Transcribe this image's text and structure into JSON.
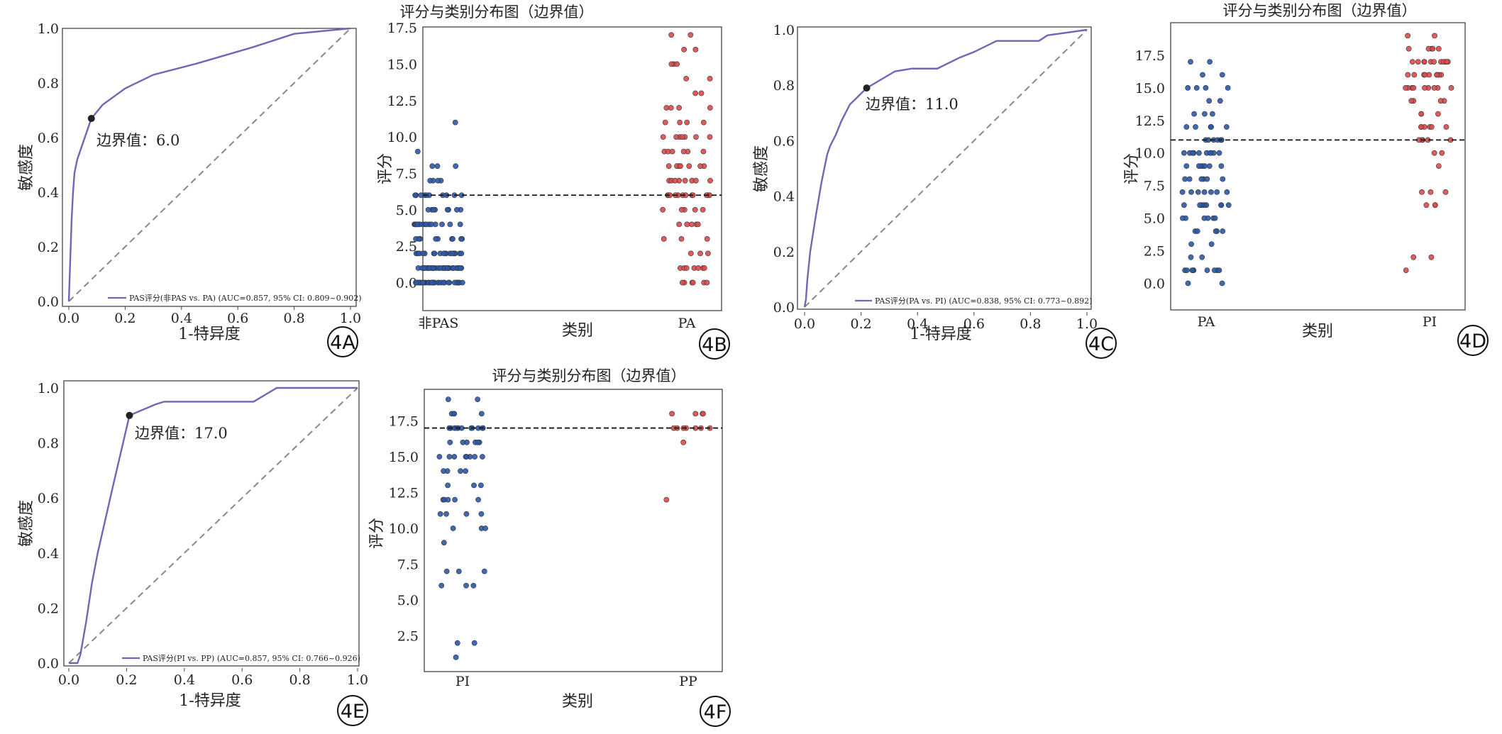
{
  "colors": {
    "roc_line": "#6f67b6",
    "diagonal": "#888888",
    "cutoff_dot": "#222222",
    "group_a": "#2b59a8",
    "group_b": "#d94b4b",
    "threshold": "#111111"
  },
  "chart_data": [
    {
      "id": "4A",
      "type": "line",
      "panel_label": "4A",
      "title": "",
      "xlabel": "1-特异度",
      "ylabel": "敏感度",
      "xlim": [
        0,
        1
      ],
      "ylim": [
        0,
        1
      ],
      "xticks": [
        "0.0",
        "0.2",
        "0.4",
        "0.6",
        "0.8",
        "1.0"
      ],
      "yticks": [
        "0.0",
        "0.2",
        "0.4",
        "0.6",
        "0.8",
        "1.0"
      ],
      "x": [
        0,
        0.005,
        0.01,
        0.015,
        0.02,
        0.03,
        0.05,
        0.08,
        0.12,
        0.2,
        0.3,
        0.45,
        0.65,
        0.8,
        1.0
      ],
      "y": [
        0,
        0.15,
        0.3,
        0.4,
        0.47,
        0.52,
        0.58,
        0.67,
        0.72,
        0.78,
        0.83,
        0.87,
        0.93,
        0.98,
        1.0
      ],
      "cutoff": {
        "x": 0.08,
        "y": 0.67,
        "text": "边界值：6.0"
      },
      "legend": "PAS评分(非PAS vs. PA) (AUC=0.857, 95% CI: 0.809~0.902)"
    },
    {
      "id": "4B",
      "type": "scatter",
      "panel_label": "4B",
      "title": "评分与类别分布图（边界值）",
      "xlabel": "类别",
      "ylabel": "评分",
      "ylim": [
        -0.9,
        17.6
      ],
      "yticks": [
        "0.0",
        "2.5",
        "5.0",
        "7.5",
        "10.0",
        "12.5",
        "15.0",
        "17.5"
      ],
      "categories": [
        "非PAS",
        "PA"
      ],
      "threshold": 6.0,
      "series": [
        {
          "name": "非PAS",
          "values": [
            0,
            0,
            0,
            0,
            0,
            0,
            0,
            0,
            0,
            0,
            0,
            0,
            0,
            0,
            0,
            0,
            0,
            0,
            0,
            0,
            0,
            0,
            0,
            0,
            0,
            0,
            0,
            0,
            0,
            0,
            0,
            0,
            0,
            0,
            0,
            0,
            1,
            1,
            1,
            1,
            1,
            1,
            1,
            1,
            1,
            1,
            1,
            1,
            1,
            1,
            1,
            1,
            1,
            1,
            1,
            1,
            1,
            1,
            1,
            1,
            1,
            1,
            1,
            1,
            1,
            1,
            1,
            1,
            1,
            1,
            1,
            1,
            2,
            2,
            2,
            2,
            2,
            2,
            2,
            2,
            2,
            2,
            2,
            2,
            2,
            2,
            2,
            2,
            2,
            2,
            3,
            3,
            3,
            3,
            3,
            3,
            3,
            3,
            3,
            4,
            4,
            4,
            4,
            4,
            4,
            4,
            4,
            4,
            4,
            4,
            4,
            4,
            4,
            4,
            5,
            5,
            5,
            5,
            5,
            5,
            5,
            5,
            6,
            6,
            6,
            6,
            6,
            6,
            6,
            6,
            6,
            6,
            6,
            7,
            7,
            7,
            7,
            8,
            8,
            8,
            9,
            11
          ]
        },
        {
          "name": "PA",
          "values": [
            0,
            0,
            0,
            0,
            0,
            0,
            1,
            1,
            1,
            1,
            1,
            1,
            1,
            2,
            2,
            2,
            3,
            3,
            3,
            4,
            4,
            4,
            4,
            4,
            5,
            5,
            5,
            5,
            5,
            6,
            6,
            6,
            6,
            6,
            6,
            6,
            6,
            6,
            6,
            6,
            6,
            7,
            7,
            7,
            7,
            7,
            7,
            7,
            7,
            8,
            8,
            8,
            8,
            8,
            8,
            8,
            9,
            9,
            9,
            9,
            9,
            9,
            10,
            10,
            10,
            10,
            10,
            10,
            10,
            11,
            11,
            11,
            11,
            12,
            12,
            12,
            12,
            13,
            13,
            14,
            14,
            15,
            15,
            15,
            16,
            16,
            17,
            17
          ]
        }
      ]
    },
    {
      "id": "4C",
      "type": "line",
      "panel_label": "4C",
      "title": "",
      "xlabel": "1-特异度",
      "ylabel": "敏感度",
      "xlim": [
        0,
        1
      ],
      "ylim": [
        0,
        1
      ],
      "xticks": [
        "0.0",
        "0.2",
        "0.4",
        "0.6",
        "0.8",
        "1.0"
      ],
      "yticks": [
        "0.0",
        "0.2",
        "0.4",
        "0.6",
        "0.8",
        "1.0"
      ],
      "x": [
        0,
        0.005,
        0.01,
        0.02,
        0.04,
        0.06,
        0.08,
        0.09,
        0.11,
        0.13,
        0.16,
        0.19,
        0.22,
        0.27,
        0.32,
        0.38,
        0.47,
        0.55,
        0.6,
        0.68,
        0.83,
        0.86,
        1.0
      ],
      "y": [
        0,
        0.03,
        0.1,
        0.2,
        0.33,
        0.45,
        0.55,
        0.58,
        0.62,
        0.67,
        0.73,
        0.76,
        0.79,
        0.82,
        0.85,
        0.86,
        0.86,
        0.9,
        0.92,
        0.96,
        0.96,
        0.98,
        1.0
      ],
      "cutoff": {
        "x": 0.22,
        "y": 0.79,
        "text": "边界值：11.0"
      },
      "legend": "PAS评分(PA vs. PI) (AUC=0.838, 95% CI: 0.773~0.892)"
    },
    {
      "id": "4D",
      "type": "scatter",
      "panel_label": "4D",
      "title": "评分与类别分布图（边界值）",
      "xlabel": "类别",
      "ylabel": "评分",
      "ylim": [
        -0.9,
        20.0
      ],
      "yticks": [
        "0.0",
        "2.5",
        "5.0",
        "7.5",
        "10.0",
        "12.5",
        "15.0",
        "17.5"
      ],
      "categories": [
        "PA",
        "PI"
      ],
      "threshold": 11.0,
      "series": [
        {
          "name": "PA",
          "values": [
            0,
            0,
            1,
            1,
            1,
            1,
            1,
            1,
            1,
            1,
            1,
            2,
            2,
            3,
            3,
            4,
            4,
            4,
            4,
            4,
            5,
            5,
            5,
            5,
            5,
            5,
            6,
            6,
            6,
            6,
            6,
            6,
            6,
            6,
            7,
            7,
            7,
            7,
            7,
            7,
            7,
            8,
            8,
            8,
            8,
            8,
            8,
            9,
            9,
            9,
            9,
            9,
            9,
            9,
            10,
            10,
            10,
            10,
            10,
            10,
            10,
            10,
            10,
            10,
            11,
            11,
            11,
            11,
            11,
            11,
            12,
            12,
            12,
            12,
            12,
            13,
            13,
            13,
            14,
            14,
            15,
            15,
            15,
            15,
            16,
            16,
            17,
            17
          ]
        },
        {
          "name": "PI",
          "values": [
            1,
            2,
            2,
            6,
            6,
            6,
            7,
            7,
            7,
            9,
            10,
            10,
            11,
            11,
            11,
            11,
            11,
            12,
            12,
            12,
            12,
            12,
            12,
            13,
            13,
            13,
            14,
            14,
            14,
            14,
            15,
            15,
            15,
            15,
            15,
            15,
            15,
            15,
            15,
            16,
            16,
            16,
            16,
            16,
            16,
            16,
            16,
            16,
            17,
            17,
            17,
            17,
            17,
            17,
            17,
            17,
            17,
            17,
            17,
            18,
            18,
            18,
            18,
            18,
            19,
            19
          ]
        }
      ]
    },
    {
      "id": "4E",
      "type": "line",
      "panel_label": "4E",
      "title": "",
      "xlabel": "1-特异度",
      "ylabel": "敏感度",
      "xlim": [
        0,
        1
      ],
      "ylim": [
        0,
        1
      ],
      "xticks": [
        "0.0",
        "0.2",
        "0.4",
        "0.6",
        "0.8",
        "1.0"
      ],
      "yticks": [
        "0.0",
        "0.2",
        "0.4",
        "0.6",
        "0.8",
        "1.0"
      ],
      "x": [
        0,
        0.03,
        0.04,
        0.06,
        0.08,
        0.1,
        0.15,
        0.21,
        0.3,
        0.33,
        0.64,
        0.72,
        1.0
      ],
      "y": [
        0,
        0.0,
        0.03,
        0.15,
        0.29,
        0.4,
        0.63,
        0.9,
        0.94,
        0.95,
        0.95,
        1.0,
        1.0
      ],
      "cutoff": {
        "x": 0.21,
        "y": 0.9,
        "text": "边界值：17.0"
      },
      "legend": "PAS评分(PI vs. PP) (AUC=0.857, 95% CI: 0.766~0.926)"
    },
    {
      "id": "4F",
      "type": "scatter",
      "panel_label": "4F",
      "title": "评分与类别分布图（边界值）",
      "xlabel": "类别",
      "ylabel": "评分",
      "ylim": [
        0.4,
        19.7
      ],
      "yticks": [
        "2.5",
        "5.0",
        "7.5",
        "10.0",
        "12.5",
        "15.0",
        "17.5"
      ],
      "categories": [
        "PI",
        "PP"
      ],
      "threshold": 17.0,
      "series": [
        {
          "name": "PI",
          "values": [
            1,
            2,
            2,
            6,
            6,
            6,
            7,
            7,
            7,
            9,
            10,
            10,
            10,
            11,
            11,
            11,
            11,
            12,
            12,
            12,
            12,
            12,
            13,
            13,
            13,
            14,
            14,
            14,
            14,
            15,
            15,
            15,
            15,
            15,
            15,
            15,
            15,
            16,
            16,
            16,
            16,
            16,
            16,
            17,
            17,
            17,
            17,
            17,
            17,
            17,
            17,
            17,
            17,
            17,
            18,
            18,
            18,
            18,
            19,
            19
          ]
        },
        {
          "name": "PP",
          "values": [
            12,
            16,
            17,
            17,
            17,
            17,
            17,
            17,
            17,
            18,
            18,
            18,
            18
          ]
        }
      ]
    }
  ]
}
